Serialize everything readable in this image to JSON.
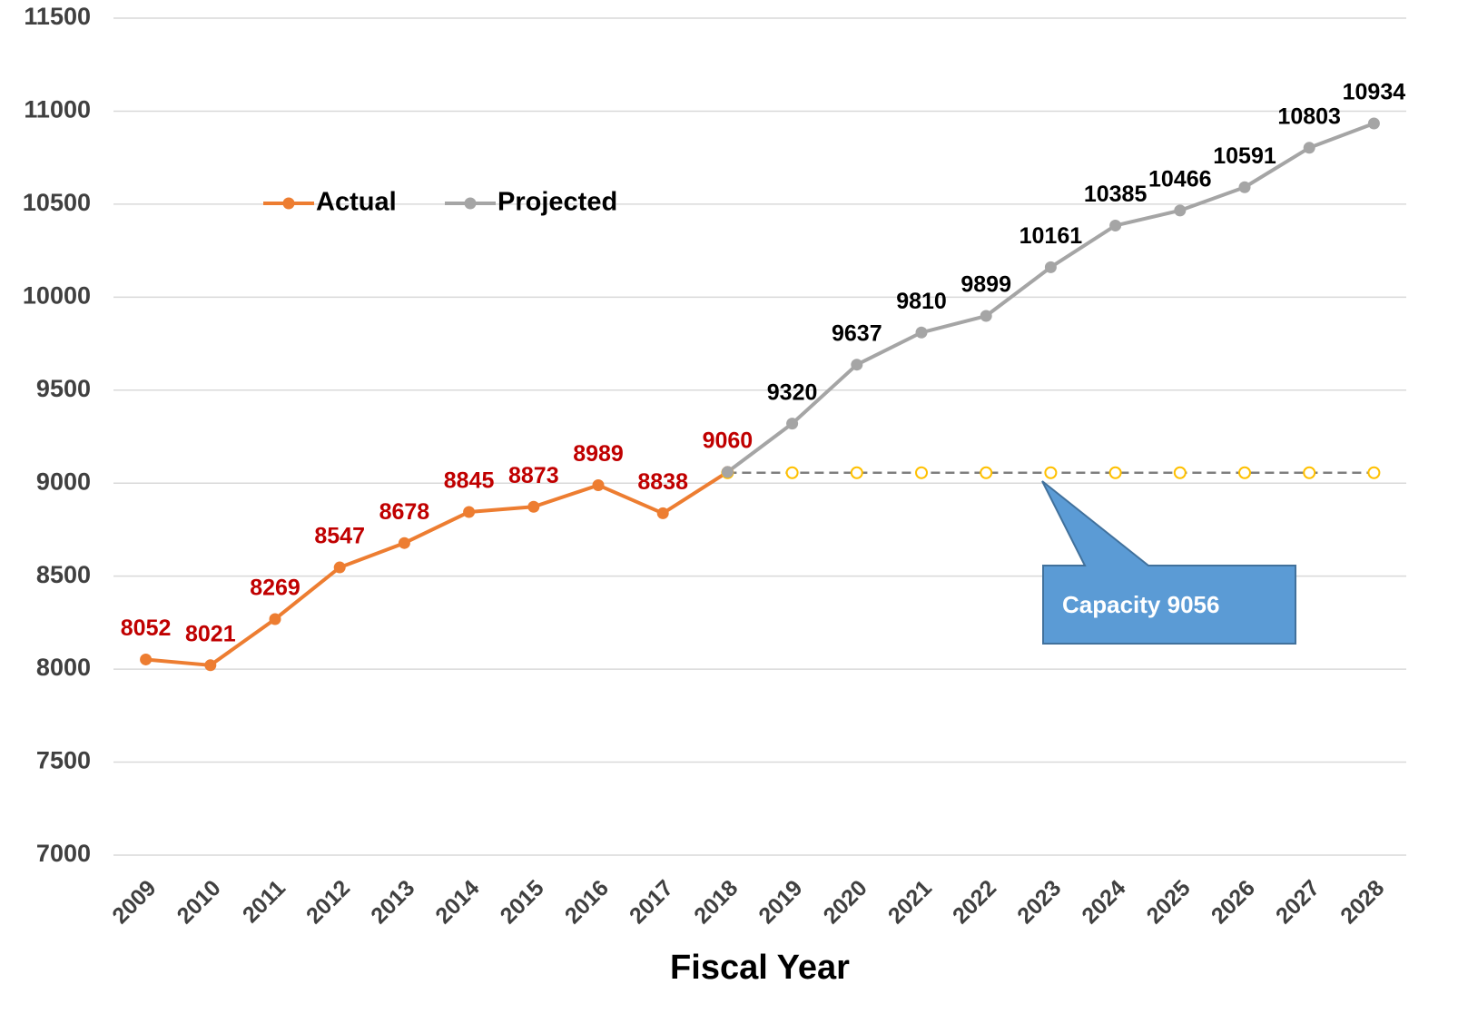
{
  "chart_data": {
    "type": "line",
    "x_label": "Fiscal Year",
    "categories": [
      "2009",
      "2010",
      "2011",
      "2012",
      "2013",
      "2014",
      "2015",
      "2016",
      "2017",
      "2018",
      "2019",
      "2020",
      "2021",
      "2022",
      "2023",
      "2024",
      "2025",
      "2026",
      "2027",
      "2028"
    ],
    "series": [
      {
        "name": "Actual",
        "color": "#ed7d31",
        "label_color": "#c00000",
        "values": [
          8052,
          8021,
          8269,
          8547,
          8678,
          8845,
          8873,
          8989,
          8838,
          9060,
          null,
          null,
          null,
          null,
          null,
          null,
          null,
          null,
          null,
          null
        ]
      },
      {
        "name": "Projected",
        "color": "#a5a5a5",
        "label_color": "#000000",
        "values": [
          null,
          null,
          null,
          null,
          null,
          null,
          null,
          null,
          null,
          9060,
          9320,
          9637,
          9810,
          9899,
          10161,
          10385,
          10466,
          10591,
          10803,
          10934
        ]
      }
    ],
    "capacity": {
      "color": "#7f7f7f",
      "marker_color": "#ffc000",
      "values": [
        null,
        null,
        null,
        null,
        null,
        null,
        null,
        null,
        null,
        9056,
        9056,
        9056,
        9056,
        9056,
        9056,
        9056,
        9056,
        9056,
        9056,
        9056
      ]
    },
    "annotation": "Capacity 9056",
    "ylim": [
      7000,
      11500
    ],
    "yticks": [
      7000,
      7500,
      8000,
      8500,
      9000,
      9500,
      10000,
      10500,
      11000,
      11500
    ],
    "grid": true
  }
}
